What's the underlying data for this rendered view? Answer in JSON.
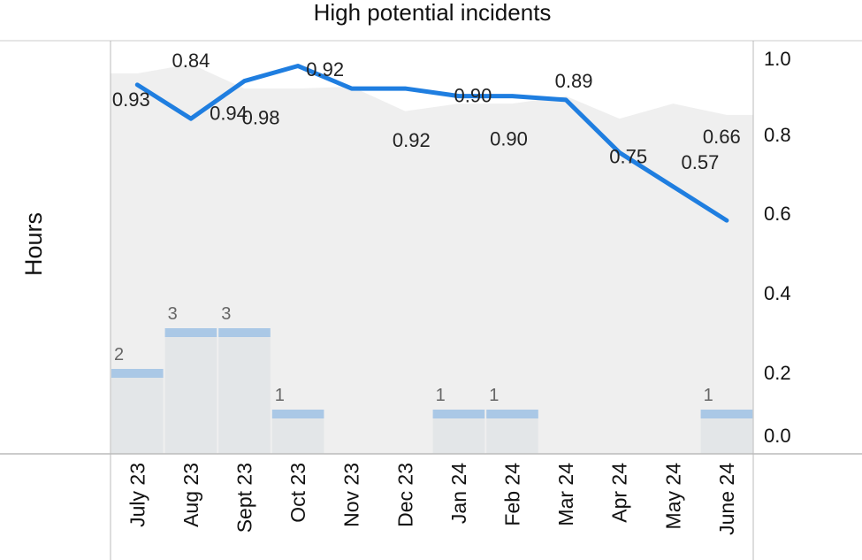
{
  "chart_data": {
    "type": "line",
    "title": "High potential incidents",
    "ylabel": "Hours",
    "categories": [
      "July 23",
      "Aug 23",
      "Sept 23",
      "Oct 23",
      "Nov 23",
      "Dec 23",
      "Jan 24",
      "Feb 24",
      "Mar 24",
      "Apr 24",
      "May 24",
      "June 24"
    ],
    "right_axis": {
      "ticks": [
        "1.0",
        "0.8",
        "0.6",
        "0.4",
        "0.2",
        "0.0"
      ],
      "ylim": [
        0,
        1.0
      ]
    },
    "band": {
      "values": [
        0.96,
        0.985,
        0.92,
        0.92,
        0.925,
        0.86,
        0.88,
        0.88,
        0.9,
        0.84,
        0.88,
        0.85
      ]
    },
    "series": [
      {
        "name": "",
        "values": [
          0.93,
          0.84,
          0.94,
          0.98,
          0.92,
          0.92,
          0.9,
          0.9,
          0.89,
          0.75,
          0.66,
          0.57
        ],
        "color": "#1f7ee0"
      }
    ],
    "data_labels": [
      "0.93",
      "0.84",
      "0.94",
      "0.98",
      "0.92",
      "0.92",
      "0.90",
      "0.90",
      "0.89",
      "0.75",
      "0.66",
      "0.57"
    ],
    "counts": [
      2,
      3,
      3,
      1,
      null,
      null,
      1,
      1,
      null,
      null,
      null,
      1
    ],
    "count_labels": [
      "2",
      "3",
      "3",
      "1",
      "",
      "",
      "1",
      "1",
      "",
      "",
      "",
      "1"
    ],
    "colors": {
      "line": "#1f7ee0",
      "band": "#efefef",
      "count_bar": "#aac8e6",
      "count_fill": "#e3e6e8"
    }
  }
}
